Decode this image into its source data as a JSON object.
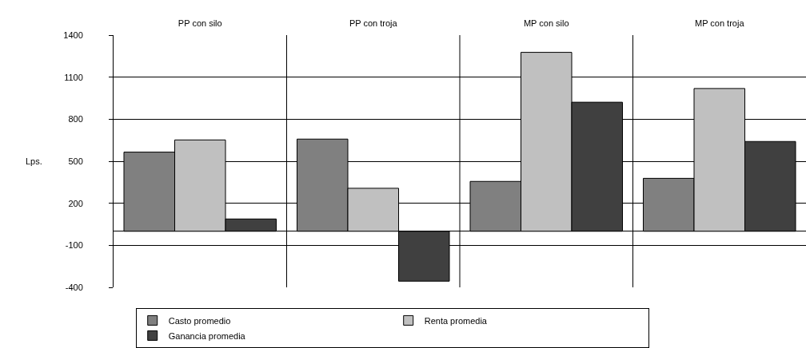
{
  "chart_data": {
    "type": "bar",
    "ylabel": "Lps.",
    "categories": [
      "PP con silo",
      "PP con troja",
      "MP con silo",
      "MP con troja"
    ],
    "series": [
      {
        "name": "Casto promedio",
        "color": "#808080",
        "values": [
          565,
          658,
          356,
          378
        ]
      },
      {
        "name": "Renta promedia",
        "color": "#c0c0c0",
        "values": [
          652,
          307,
          1277,
          1019
        ]
      },
      {
        "name": "Ganancia promedia",
        "color": "#404040",
        "values": [
          88,
          -356,
          921,
          641
        ]
      }
    ],
    "ylim": [
      -400,
      1400
    ],
    "yticks": [
      -400,
      -100,
      200,
      500,
      800,
      1100,
      1400
    ],
    "grid": true,
    "legend": "bottom"
  }
}
